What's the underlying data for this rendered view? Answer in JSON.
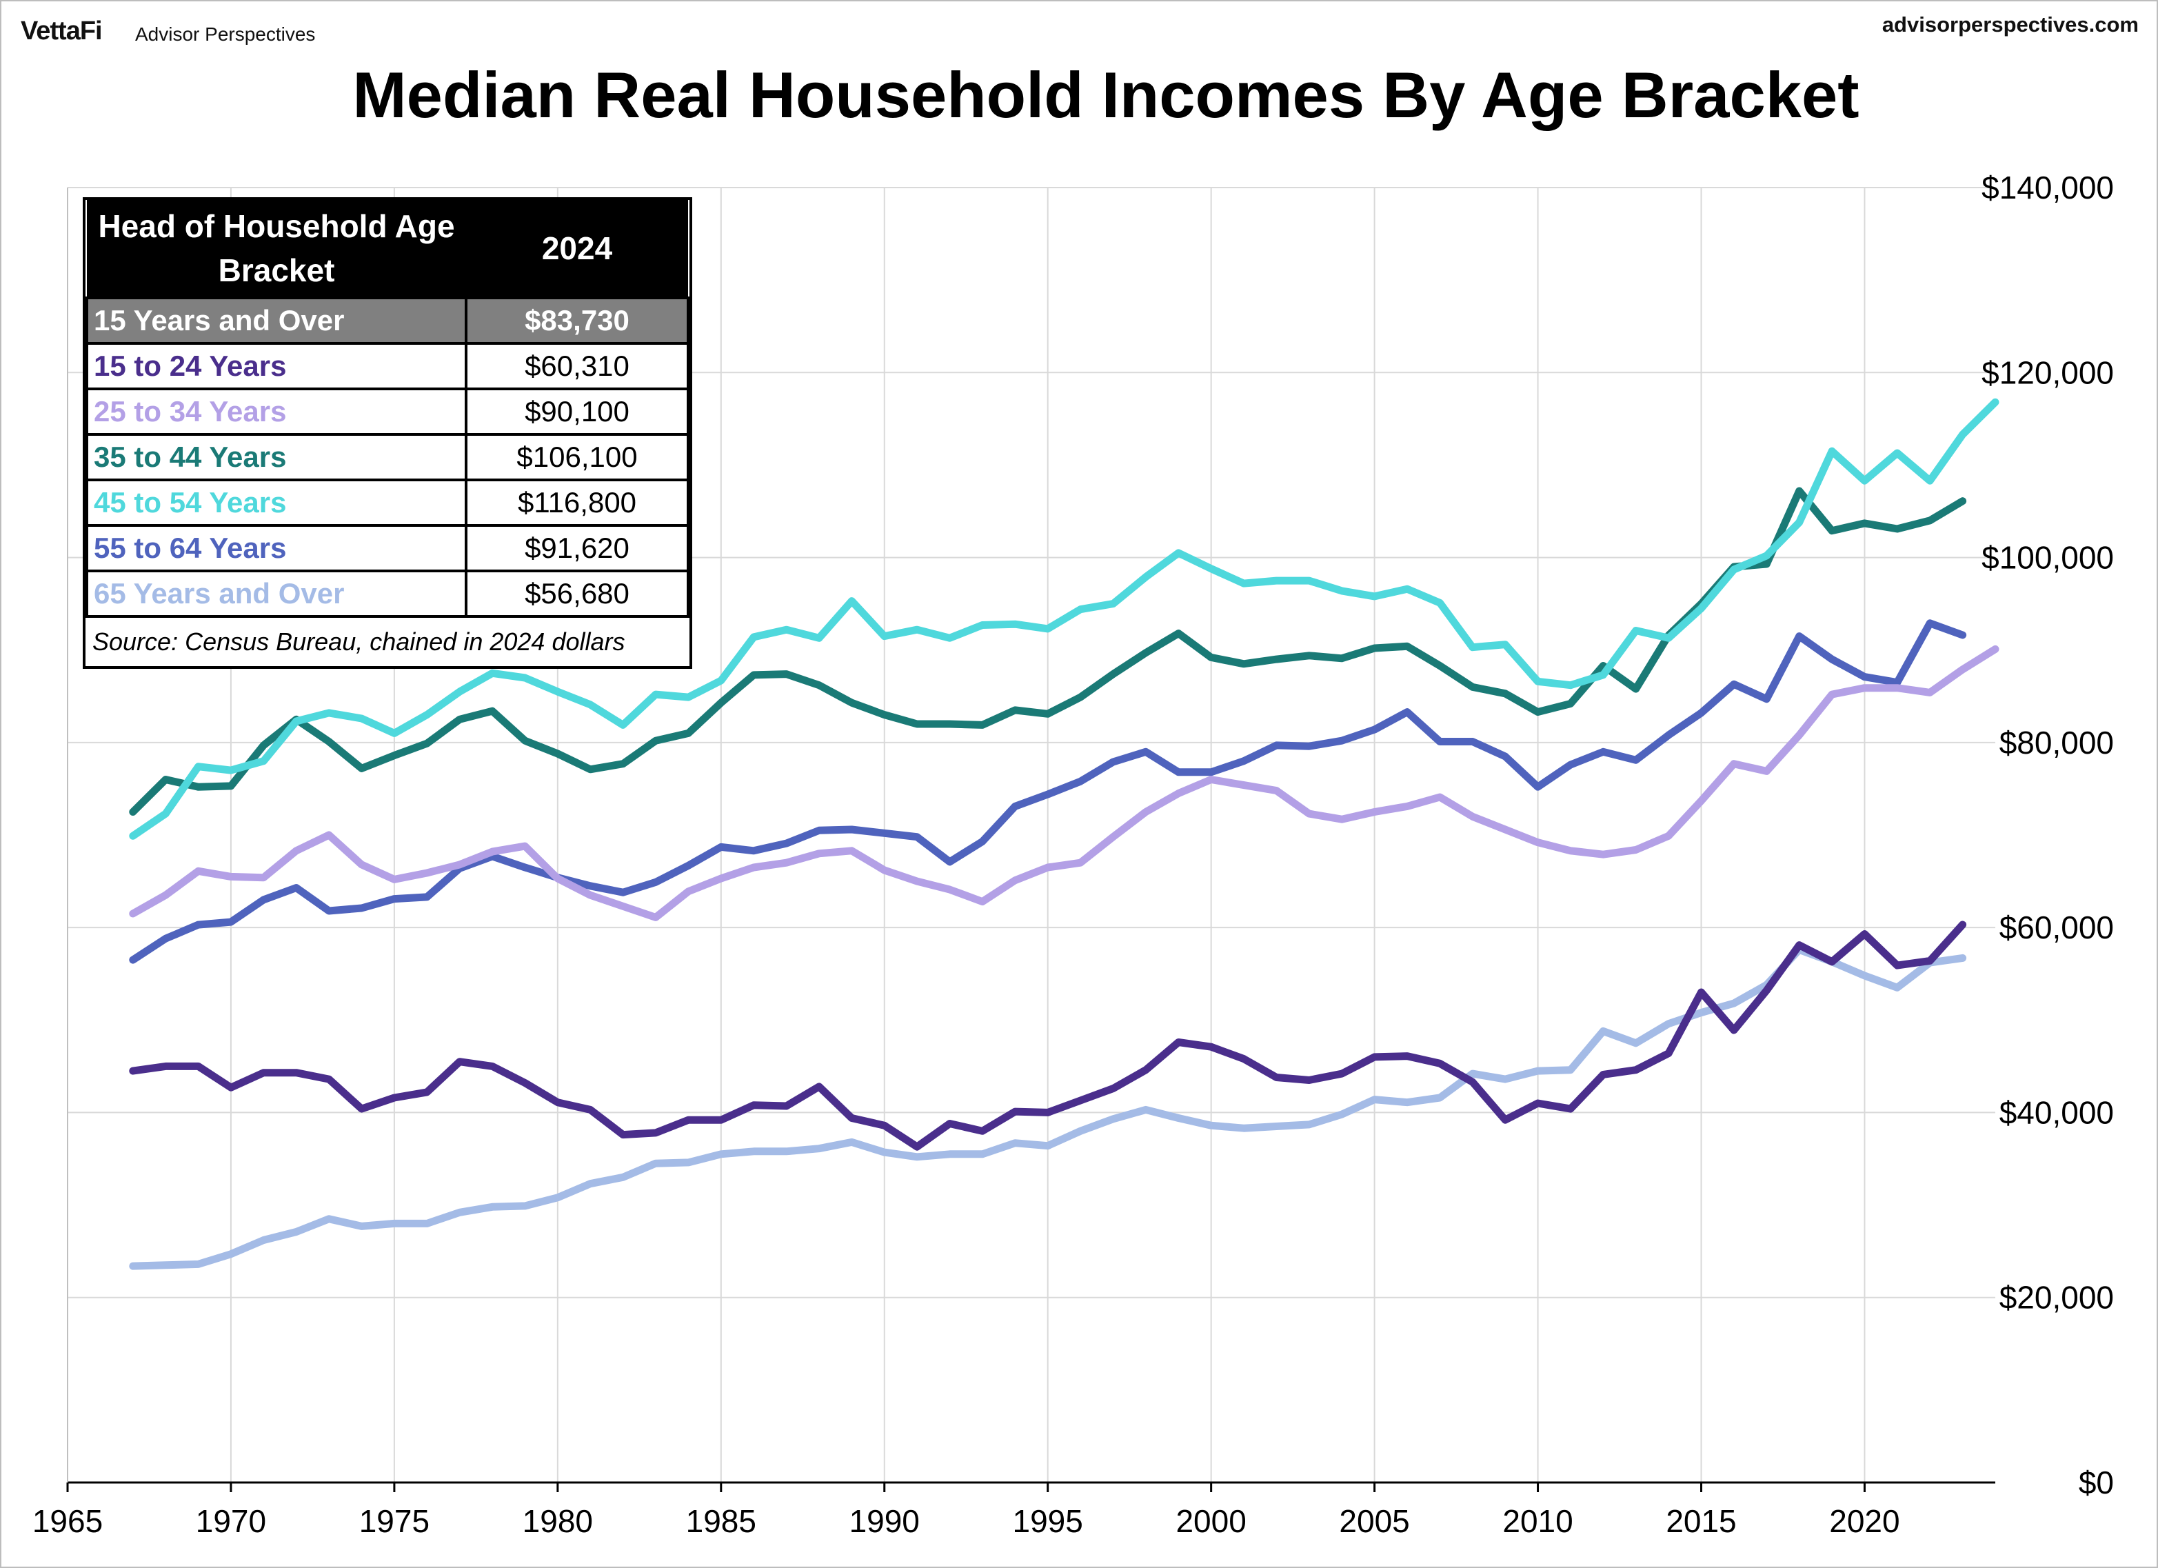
{
  "header": {
    "brand": "VettaFi",
    "sub_brand": "Advisor Perspectives",
    "site": "advisorperspectives.com"
  },
  "table": {
    "header_col1": "Head of Household Age Bracket",
    "header_col2": "2024",
    "rows": [
      {
        "label": "15 Years and Over",
        "value": "$83,730",
        "color": "#808080"
      },
      {
        "label": "15 to 24 Years",
        "value": "$60,310",
        "color": "#4a2e8c"
      },
      {
        "label": "25 to 34 Years",
        "value": "$90,100",
        "color": "#b3a0e6"
      },
      {
        "label": "35 to 44 Years",
        "value": "$106,100",
        "color": "#1a7a76"
      },
      {
        "label": "45 to 54 Years",
        "value": "$116,800",
        "color": "#4fd8dc"
      },
      {
        "label": "55 to 64 Years",
        "value": "$91,620",
        "color": "#4f63bd"
      },
      {
        "label": "65 Years and Over",
        "value": "$56,680",
        "color": "#a4bbe6"
      }
    ],
    "source": "Source: Census Bureau, chained in 2024 dollars"
  },
  "chart_data": {
    "type": "line",
    "title": "Median Real Household Incomes By Age Bracket",
    "xlabel": "",
    "ylabel": "",
    "xlim": [
      1965,
      2024
    ],
    "ylim": [
      0,
      140000
    ],
    "x_ticks": [
      1965,
      1970,
      1975,
      1980,
      1985,
      1990,
      1995,
      2000,
      2005,
      2010,
      2015,
      2020
    ],
    "y_ticks": [
      0,
      20000,
      40000,
      60000,
      80000,
      100000,
      120000,
      140000
    ],
    "y_tick_labels": [
      "$0",
      "$20,000",
      "$40,000",
      "$60,000",
      "$80,000",
      "$100,000",
      "$120,000",
      "$140,000"
    ],
    "y_axis_side": "right",
    "grid": true,
    "x": [
      1967,
      1968,
      1969,
      1970,
      1971,
      1972,
      1973,
      1974,
      1975,
      1976,
      1977,
      1978,
      1979,
      1980,
      1981,
      1982,
      1983,
      1984,
      1985,
      1986,
      1987,
      1988,
      1989,
      1990,
      1991,
      1992,
      1993,
      1994,
      1995,
      1996,
      1997,
      1998,
      1999,
      2000,
      2001,
      2002,
      2003,
      2004,
      2005,
      2006,
      2007,
      2008,
      2009,
      2010,
      2011,
      2012,
      2013,
      2014,
      2015,
      2016,
      2017,
      2018,
      2019,
      2020,
      2021,
      2022,
      2023,
      2024
    ],
    "series": [
      {
        "name": "65 Years and Over",
        "color": "#a4bbe6",
        "values": [
          23400,
          23500,
          23600,
          24700,
          26200,
          27100,
          28500,
          27700,
          28000,
          28000,
          29200,
          29800,
          29900,
          30800,
          32300,
          33000,
          34500,
          34600,
          35500,
          35800,
          35800,
          36100,
          36800,
          35700,
          35200,
          35500,
          35500,
          36700,
          36400,
          38000,
          39300,
          40300,
          39400,
          38600,
          38300,
          38500,
          38700,
          39800,
          41400,
          41100,
          41600,
          44200,
          43600,
          44500,
          44600,
          48800,
          47500,
          49600,
          50800,
          51800,
          53800,
          57600,
          56300,
          54800,
          53500,
          56200,
          56700,
          null
        ]
      },
      {
        "name": "15 to 24 Years",
        "color": "#4a2e8c",
        "values": [
          44500,
          45000,
          45000,
          42700,
          44300,
          44300,
          43600,
          40400,
          41600,
          42200,
          45500,
          45000,
          43200,
          41100,
          40300,
          37600,
          37800,
          39200,
          39200,
          40800,
          40700,
          42800,
          39400,
          38600,
          36300,
          38800,
          38000,
          40100,
          40000,
          41300,
          42600,
          44600,
          47600,
          47100,
          45800,
          43800,
          43500,
          44200,
          46000,
          46100,
          45300,
          43300,
          39200,
          41000,
          40400,
          44100,
          44600,
          46400,
          53000,
          48900,
          53200,
          58100,
          56300,
          59300,
          55900,
          56400,
          60310,
          null
        ]
      },
      {
        "name": "55 to 64 Years",
        "color": "#4f63bd",
        "values": [
          56500,
          58800,
          60300,
          60600,
          63000,
          64300,
          61800,
          62100,
          63100,
          63300,
          66400,
          67700,
          66500,
          65400,
          64500,
          63800,
          64900,
          66700,
          68700,
          68300,
          69100,
          70500,
          70600,
          70200,
          69800,
          67100,
          69300,
          73100,
          74400,
          75800,
          77900,
          79000,
          76800,
          76800,
          78000,
          79700,
          79600,
          80200,
          81400,
          83300,
          80100,
          80100,
          78500,
          75200,
          77600,
          79000,
          78100,
          80800,
          83200,
          86300,
          84700,
          91500,
          89000,
          87100,
          86500,
          92900,
          91620,
          null
        ]
      },
      {
        "name": "25 to 34 Years",
        "color": "#b3a0e6",
        "values": [
          61500,
          63500,
          66100,
          65500,
          65400,
          68300,
          70000,
          66800,
          65200,
          65900,
          66800,
          68200,
          68800,
          65300,
          63500,
          62300,
          61100,
          63900,
          65300,
          66500,
          67000,
          68000,
          68300,
          66200,
          65000,
          64100,
          62800,
          65100,
          66500,
          67000,
          69800,
          72500,
          74500,
          76000,
          75400,
          74800,
          72300,
          71700,
          72500,
          73100,
          74100,
          72000,
          70600,
          69200,
          68300,
          67900,
          68400,
          69900,
          73700,
          77700,
          76900,
          80800,
          85200,
          85900,
          85900,
          85400,
          87900,
          90100
        ]
      },
      {
        "name": "35 to 44 Years",
        "color": "#1a7a76",
        "values": [
          72500,
          76000,
          75200,
          75300,
          79700,
          82500,
          80100,
          77200,
          78600,
          79900,
          82500,
          83400,
          80200,
          78800,
          77100,
          77700,
          80200,
          81000,
          84300,
          87300,
          87400,
          86200,
          84300,
          83000,
          82000,
          82000,
          81900,
          83500,
          83100,
          84900,
          87400,
          89700,
          91800,
          89200,
          88500,
          89000,
          89400,
          89100,
          90200,
          90400,
          88300,
          86000,
          85300,
          83300,
          84200,
          88300,
          85800,
          91600,
          95000,
          99000,
          99300,
          107200,
          102900,
          103700,
          103100,
          104000,
          106100,
          null
        ]
      },
      {
        "name": "45 to 54 Years",
        "color": "#4fd8dc",
        "values": [
          69900,
          72300,
          77400,
          77000,
          78000,
          82300,
          83200,
          82600,
          81000,
          83000,
          85500,
          87500,
          87000,
          85500,
          84100,
          81900,
          85200,
          84900,
          86700,
          91400,
          92200,
          91300,
          95300,
          91500,
          92200,
          91300,
          92700,
          92800,
          92300,
          94400,
          95000,
          97900,
          100500,
          98800,
          97200,
          97500,
          97500,
          96400,
          95800,
          96600,
          95100,
          90300,
          90600,
          86600,
          86200,
          87300,
          92100,
          91300,
          94500,
          98700,
          100200,
          103800,
          111500,
          108300,
          111300,
          108300,
          113300,
          116800
        ]
      }
    ]
  }
}
